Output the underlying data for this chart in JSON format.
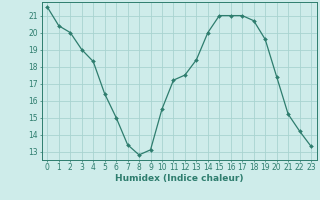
{
  "x": [
    0,
    1,
    2,
    3,
    4,
    5,
    6,
    7,
    8,
    9,
    10,
    11,
    12,
    13,
    14,
    15,
    16,
    17,
    18,
    19,
    20,
    21,
    22,
    23
  ],
  "y": [
    21.5,
    20.4,
    20.0,
    19.0,
    18.3,
    16.4,
    15.0,
    13.4,
    12.8,
    13.1,
    15.5,
    17.2,
    17.5,
    18.4,
    20.0,
    21.0,
    21.0,
    21.0,
    20.7,
    19.6,
    17.4,
    15.2,
    14.2,
    13.3
  ],
  "line_color": "#2e7d6e",
  "marker": "D",
  "marker_size": 2.0,
  "bg_color": "#ceecea",
  "grid_color": "#a8d4d0",
  "xlabel": "Humidex (Indice chaleur)",
  "xlim": [
    -0.5,
    23.5
  ],
  "ylim": [
    12.5,
    21.8
  ],
  "xtick_labels": [
    "0",
    "1",
    "2",
    "3",
    "4",
    "5",
    "6",
    "7",
    "8",
    "9",
    "10",
    "11",
    "12",
    "13",
    "14",
    "15",
    "16",
    "17",
    "18",
    "19",
    "20",
    "21",
    "22",
    "23"
  ],
  "ytick_values": [
    13,
    14,
    15,
    16,
    17,
    18,
    19,
    20,
    21
  ],
  "label_fontsize": 6.5,
  "tick_fontsize": 5.5
}
